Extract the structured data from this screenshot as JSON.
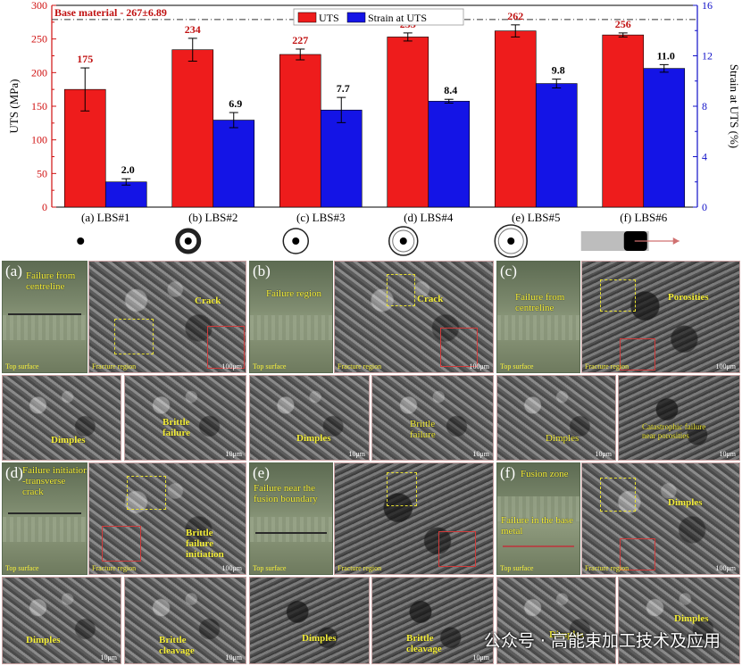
{
  "chart_data": {
    "type": "bar",
    "categories": [
      "(a) LBS#1",
      "(b) LBS#2",
      "(c) LBS#3",
      "(d) LBS#4",
      "(e) LBS#5",
      "(f) LBS#6"
    ],
    "series": [
      {
        "name": "UTS",
        "axis": "left",
        "color": "#ee1c1c",
        "values": [
          175,
          234,
          227,
          253,
          262,
          256
        ],
        "errors": [
          32,
          17,
          8,
          6,
          9,
          3
        ],
        "labels": [
          "175",
          "234",
          "227",
          "253",
          "262",
          "256"
        ]
      },
      {
        "name": "Strain at UTS",
        "axis": "right",
        "color": "#1414e6",
        "values": [
          2.0,
          6.9,
          7.7,
          8.4,
          9.8,
          11.0
        ],
        "errors": [
          0.25,
          0.6,
          1.0,
          0.15,
          0.35,
          0.3
        ],
        "labels": [
          "2.0",
          "6.9",
          "7.7",
          "8.4",
          "9.8",
          "11.0"
        ]
      }
    ],
    "ylabel": "UTS (MPa)",
    "y2label": "Strain at UTS (%)",
    "ylim": [
      0,
      300
    ],
    "y2lim": [
      0,
      16
    ],
    "yticks": [
      "0",
      "50",
      "100",
      "150",
      "200",
      "250",
      "300"
    ],
    "y2ticks": [
      "0",
      "4",
      "8",
      "12",
      "16"
    ],
    "reference": {
      "label": "Base material - 267±6.89",
      "value": 267
    },
    "legend": "top-center",
    "grid": false
  },
  "icons": [
    "dot-icon",
    "ring-dot-icon",
    "ring-dot-icon",
    "ring-dot-icon",
    "ring-dot-icon",
    "strip-icon"
  ],
  "panels": {
    "a": {
      "label": "(a)",
      "failure_text": "Failure from centreline",
      "crack": "Crack",
      "dimples": "Dimples",
      "brittle": "Brittle failure"
    },
    "b": {
      "label": "(b)",
      "failure_text": "Failure region",
      "crack": "Crack",
      "dimples": "Dimples",
      "brittle": "Brittle failure"
    },
    "c": {
      "label": "(c)",
      "failure_text": "Failure from centreline",
      "porosities": "Porosities",
      "dimples": "Dimples",
      "catastrophic": "Catastrophic failure near porosities"
    },
    "d": {
      "label": "(d)",
      "failure_text": "Failure initiation -transverse crack",
      "brittle_init": "Brittle failure initiation",
      "dimples": "Dimples",
      "cleavage": "Brittle cleavage"
    },
    "e": {
      "label": "(e)",
      "failure_text": "Failure near the fusion boundary",
      "dimples": "Dimples",
      "cleavage": "Brittle cleavage"
    },
    "f": {
      "label": "(f)",
      "fusion_zone": "Fusion zone",
      "failure_text": "Failure in the base metal",
      "dimples": "Dimples",
      "dimples_zoom": "Dimples",
      "dimples_zoom2": "Dimples"
    }
  },
  "common": {
    "top_surface": "Top surface",
    "fracture_region": "Fracture region",
    "scale_100": "100μm",
    "scale_10": "10μm"
  },
  "watermark": "公众号 · 高能束加工技术及应用"
}
